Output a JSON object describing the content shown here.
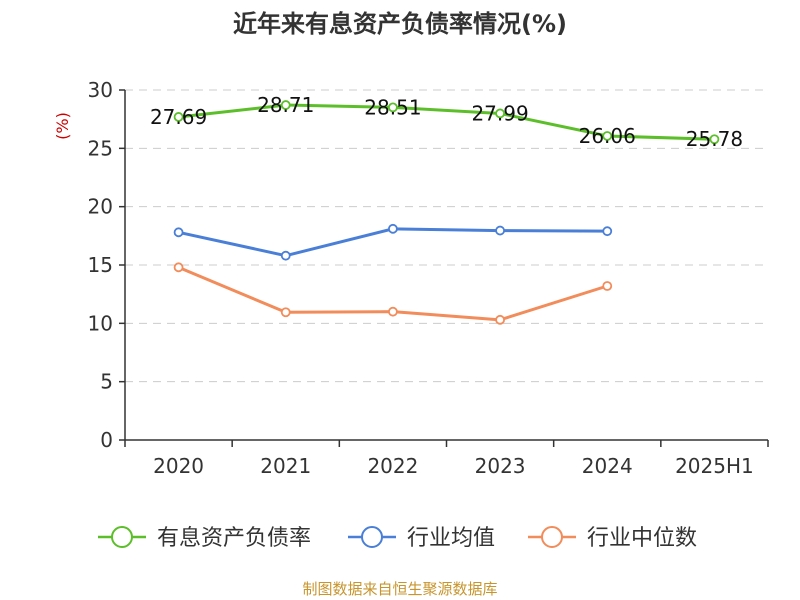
{
  "chart_data": {
    "type": "line",
    "title": "近年来有息资产负债率情况(%)",
    "ylabel": "(%)",
    "categories": [
      "2020",
      "2021",
      "2022",
      "2023",
      "2024",
      "2025H1"
    ],
    "ylim": [
      0,
      30
    ],
    "yticks": [
      "0",
      "5",
      "10",
      "15",
      "20",
      "25",
      "30"
    ],
    "grid": true,
    "legend_position": "bottom",
    "series": [
      {
        "name": "有息资产负债率",
        "color": "#5cbf2a",
        "values": [
          27.69,
          28.71,
          28.51,
          27.99,
          26.06,
          25.78
        ],
        "labels": [
          "27.69",
          "28.71",
          "28.51",
          "27.99",
          "26.06",
          "25.78"
        ]
      },
      {
        "name": "行业均值",
        "color": "#4a7fd8",
        "values": [
          17.8,
          15.8,
          18.1,
          17.95,
          17.9,
          null
        ]
      },
      {
        "name": "行业中位数",
        "color": "#f28c5a",
        "values": [
          14.8,
          10.95,
          11.0,
          10.3,
          13.2,
          null
        ]
      }
    ],
    "source": "制图数据来自恒生聚源数据库"
  }
}
